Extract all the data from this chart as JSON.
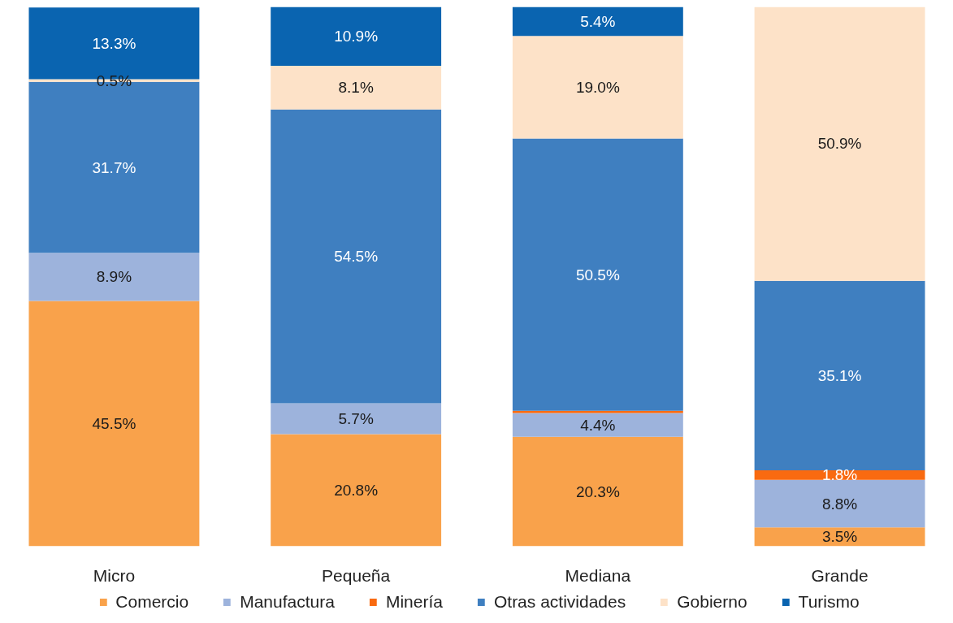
{
  "chart_data": {
    "type": "bar",
    "stacked": true,
    "categories": [
      "Micro",
      "Pequeña",
      "Mediana",
      "Grande"
    ],
    "ylim": [
      0,
      100
    ],
    "tick_labels": "x",
    "grid": false,
    "legend": "bottom",
    "series": [
      {
        "name": "Comercio",
        "color": "#f9a24b",
        "values": [
          45.5,
          20.8,
          20.3,
          3.5
        ],
        "value_labels": [
          "45.5%",
          "20.8%",
          "20.3%",
          "3.5%"
        ]
      },
      {
        "name": "Manufactura",
        "color": "#9db3dc",
        "values": [
          8.9,
          5.7,
          4.4,
          8.8
        ],
        "value_labels": [
          "8.9%",
          "5.7%",
          "4.4%",
          "8.8%"
        ]
      },
      {
        "name": "Minería",
        "color": "#f96a10",
        "values": [
          null,
          null,
          0.4,
          1.8
        ],
        "value_labels": [
          null,
          null,
          null,
          "1.8%"
        ]
      },
      {
        "name": "Otras actividades",
        "color": "#3f7fc0",
        "values": [
          31.7,
          54.5,
          50.5,
          35.1
        ],
        "value_labels": [
          "31.7%",
          "54.5%",
          "50.5%",
          "35.1%"
        ]
      },
      {
        "name": "Gobierno",
        "color": "#fde2c8",
        "values": [
          0.5,
          8.1,
          19.0,
          50.9
        ],
        "value_labels": [
          "0.5%",
          "8.1%",
          "19.0%",
          "50.9%"
        ]
      },
      {
        "name": "Turismo",
        "color": "#0a64b0",
        "values": [
          13.3,
          10.9,
          5.4,
          null
        ],
        "value_labels": [
          "13.3%",
          "10.9%",
          "5.4%",
          null
        ]
      }
    ]
  }
}
